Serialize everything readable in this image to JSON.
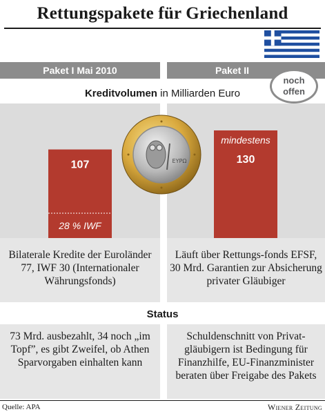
{
  "header": {
    "title": "Rettungspakete für Griechenland"
  },
  "columns": [
    {
      "label": "Paket I Mai 2010"
    },
    {
      "label": "Paket II",
      "badge": "noch offen"
    }
  ],
  "subtitle": {
    "bold": "Kreditvolumen",
    "rest": " in Milliarden Euro"
  },
  "chart_data": {
    "type": "bar",
    "unit": "Milliarden Euro",
    "categories": [
      "Paket I Mai 2010",
      "Paket II"
    ],
    "values": [
      107,
      130
    ],
    "value_labels": [
      "107",
      "130"
    ],
    "qualifier": [
      "",
      "mindestens"
    ],
    "segment_note": {
      "bar": 0,
      "text": "28 % IWF",
      "share": 0.28
    },
    "bar_color": "#b33a2e"
  },
  "descriptions": [
    "Bilaterale Kredite der Euroländer 77, IWF 30 (Internationaler Währungsfonds)",
    "Läuft über Rettungs-fonds EFSF, 30 Mrd. Garantien zur Absicherung privater Gläubiger"
  ],
  "status": {
    "label": "Status",
    "items": [
      "73 Mrd. ausbezahlt, 34 noch „im Topf”, es gibt Zweifel, ob Athen Sparvorgaben einhalten kann",
      "Schuldenschnitt von Privat-gläubigern ist Bedingung für Finanzhilfe, EU-Finanzminister beraten über Freigabe des Pakets"
    ]
  },
  "footer": {
    "source": "Quelle: APA",
    "brand": "Wiener Zeitung"
  },
  "coin": {
    "text": "ΕΥΡΩ"
  },
  "colors": {
    "bar": "#b33a2e",
    "panel": "#dcdcdc",
    "header": "#8c8c8c",
    "flag_blue": "#1f4fa0"
  },
  "icons": [
    "greek-flag-icon",
    "euro-coin-icon"
  ]
}
